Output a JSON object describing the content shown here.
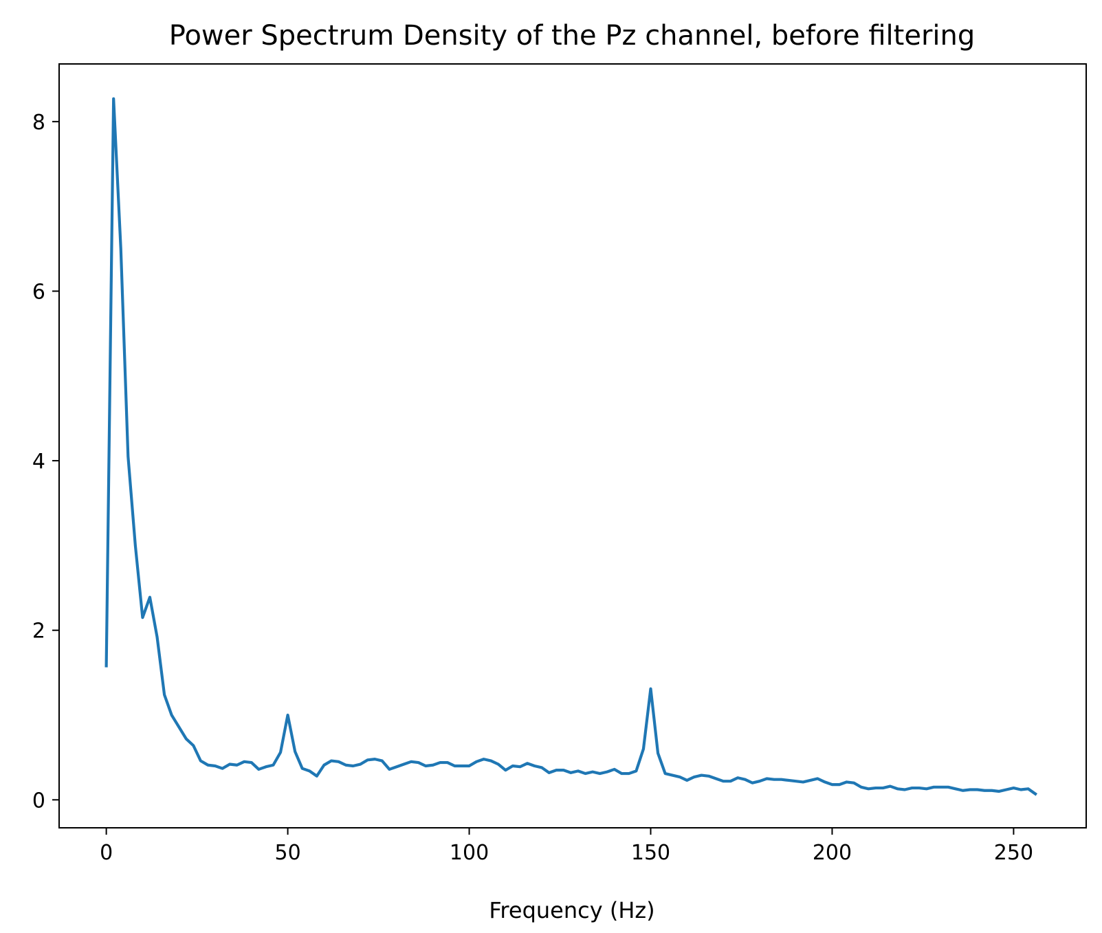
{
  "chart_data": {
    "type": "line",
    "title": "Power Spectrum Density of the Pz channel, before filtering",
    "xlabel": "Frequency (Hz)",
    "ylabel": "",
    "xlim": [
      -13,
      270
    ],
    "ylim": [
      -0.33,
      8.68
    ],
    "xticks": [
      0,
      50,
      100,
      150,
      200,
      250
    ],
    "yticks": [
      0,
      2,
      4,
      6,
      8
    ],
    "xtick_labels": [
      "0",
      "50",
      "100",
      "150",
      "200",
      "250"
    ],
    "ytick_labels": [
      "0",
      "2",
      "4",
      "6",
      "8"
    ],
    "grid": false,
    "legend": "none",
    "series": [
      {
        "color": "#1f77b4",
        "x": [
          0,
          2,
          4,
          6,
          8,
          10,
          12,
          14,
          16,
          18,
          20,
          22,
          24,
          26,
          28,
          30,
          32,
          34,
          36,
          38,
          40,
          42,
          44,
          46,
          48,
          50,
          52,
          54,
          56,
          58,
          60,
          62,
          64,
          66,
          68,
          70,
          72,
          74,
          76,
          78,
          80,
          82,
          84,
          86,
          88,
          90,
          92,
          94,
          96,
          98,
          100,
          102,
          104,
          106,
          108,
          110,
          112,
          114,
          116,
          118,
          120,
          122,
          124,
          126,
          128,
          130,
          132,
          134,
          136,
          138,
          140,
          142,
          144,
          146,
          148,
          150,
          152,
          154,
          156,
          158,
          160,
          162,
          164,
          166,
          168,
          170,
          172,
          174,
          176,
          178,
          180,
          182,
          184,
          186,
          188,
          190,
          192,
          194,
          196,
          198,
          200,
          202,
          204,
          206,
          208,
          210,
          212,
          214,
          216,
          218,
          220,
          222,
          224,
          226,
          228,
          230,
          232,
          234,
          236,
          238,
          240,
          242,
          244,
          246,
          248,
          250,
          252,
          254,
          256
        ],
        "y": [
          1.58,
          8.27,
          6.5,
          4.05,
          3.0,
          2.15,
          2.39,
          1.92,
          1.24,
          1.0,
          0.86,
          0.72,
          0.64,
          0.46,
          0.41,
          0.4,
          0.37,
          0.42,
          0.41,
          0.45,
          0.44,
          0.36,
          0.39,
          0.41,
          0.56,
          1.0,
          0.57,
          0.37,
          0.34,
          0.28,
          0.41,
          0.46,
          0.45,
          0.41,
          0.4,
          0.42,
          0.47,
          0.48,
          0.46,
          0.36,
          0.39,
          0.42,
          0.45,
          0.44,
          0.4,
          0.41,
          0.44,
          0.44,
          0.4,
          0.4,
          0.4,
          0.45,
          0.48,
          0.46,
          0.42,
          0.35,
          0.4,
          0.39,
          0.43,
          0.4,
          0.38,
          0.32,
          0.35,
          0.35,
          0.32,
          0.34,
          0.31,
          0.33,
          0.31,
          0.33,
          0.36,
          0.31,
          0.31,
          0.34,
          0.6,
          1.31,
          0.55,
          0.31,
          0.29,
          0.27,
          0.23,
          0.27,
          0.29,
          0.28,
          0.25,
          0.22,
          0.22,
          0.26,
          0.24,
          0.2,
          0.22,
          0.25,
          0.24,
          0.24,
          0.23,
          0.22,
          0.21,
          0.23,
          0.25,
          0.21,
          0.18,
          0.18,
          0.21,
          0.2,
          0.15,
          0.13,
          0.14,
          0.14,
          0.16,
          0.13,
          0.12,
          0.14,
          0.14,
          0.13,
          0.15,
          0.15,
          0.15,
          0.13,
          0.11,
          0.12,
          0.12,
          0.11,
          0.11,
          0.1,
          0.12,
          0.14,
          0.12,
          0.13,
          0.07
        ]
      }
    ]
  }
}
